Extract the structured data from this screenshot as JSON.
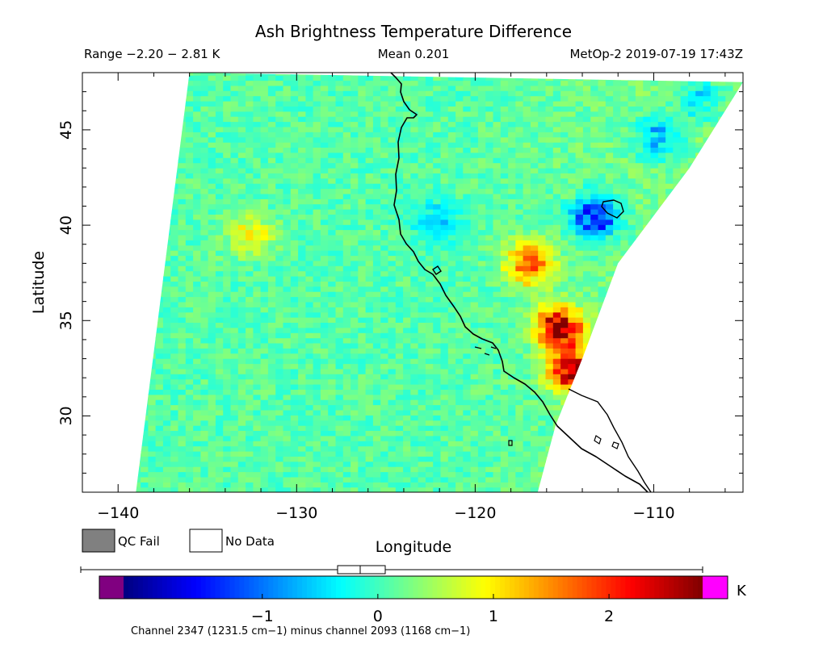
{
  "chart_data": {
    "type": "heatmap",
    "title": "Ash Brightness Temperature Difference",
    "range_text": "Range −2.20 − 2.81 K",
    "mean_text": "Mean 0.201",
    "satellite_text": "MetOp-2 2019-07-19 17:43Z",
    "xlabel": "Longitude",
    "ylabel": "Latitude",
    "xlim": [
      -142,
      -105
    ],
    "ylim": [
      26,
      48
    ],
    "x_ticks": [
      -140,
      -130,
      -120,
      -110
    ],
    "x_tick_labels": [
      "−140",
      "−130",
      "−120",
      "−110"
    ],
    "y_ticks": [
      30,
      35,
      40,
      45
    ],
    "y_tick_labels": [
      "30",
      "35",
      "40",
      "45"
    ],
    "swath_edge_west": [
      [
        -136,
        48
      ],
      [
        -139,
        26
      ]
    ],
    "swath_edge_east": [
      [
        -105,
        47.5
      ],
      [
        -108,
        43
      ],
      [
        -112,
        38
      ],
      [
        -114,
        33
      ],
      [
        -115.5,
        29.5
      ],
      [
        -116.5,
        26
      ]
    ],
    "value_range": [
      -2.2,
      2.81
    ],
    "mean": 0.201,
    "background_value": 0.1,
    "hotspots": [
      {
        "lon": -132.8,
        "lat": 39.4,
        "value": 0.95
      },
      {
        "lon": -117.2,
        "lat": 37.9,
        "value": 1.8
      },
      {
        "lon": -115.5,
        "lat": 34.5,
        "value": 2.6
      },
      {
        "lon": -114.8,
        "lat": 32.3,
        "value": 2.5
      },
      {
        "lon": -113.5,
        "lat": 40.3,
        "value": -1.6
      },
      {
        "lon": -122.5,
        "lat": 40.0,
        "value": -0.5
      },
      {
        "lon": -110.0,
        "lat": 44.5,
        "value": -0.8
      },
      {
        "lon": -107.5,
        "lat": 46.5,
        "value": -0.6
      }
    ],
    "legend": {
      "qc_fail_label": "QC Fail",
      "no_data_label": "No Data",
      "qc_fail_color": "#808080",
      "no_data_color": "#ffffff"
    },
    "colorbar": {
      "min": -2.2,
      "max": 2.81,
      "ticks": [
        -1,
        0,
        1,
        2
      ],
      "tick_labels": [
        "−1",
        "0",
        "1",
        "2"
      ],
      "unit": "K",
      "underflow_color": "#800080",
      "overflow_color": "#ff00ff"
    },
    "channel_caption": "Channel 2347 (1231.5 cm−1) minus channel 2093 (1168 cm−1)"
  }
}
